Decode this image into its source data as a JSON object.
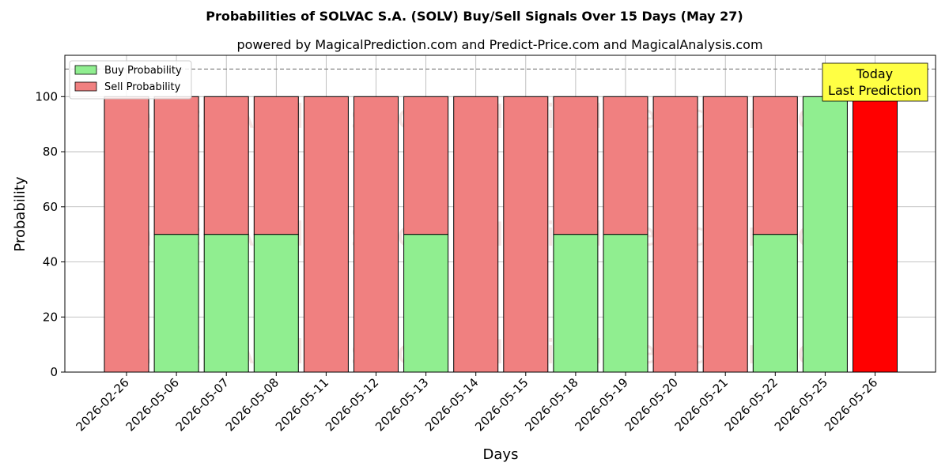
{
  "chart_data": {
    "type": "bar",
    "title": "Probabilities of SOLVAC S.A. (SOLV) Buy/Sell Signals Over 15 Days (May 27)",
    "subtitle": "powered by MagicalPrediction.com and Predict-Price.com and MagicalAnalysis.com",
    "xlabel": "Days",
    "ylabel": "Probability",
    "ylim": [
      0,
      115
    ],
    "yticks": [
      0,
      20,
      40,
      60,
      80,
      100
    ],
    "reference_line": 110,
    "grid": true,
    "legend_placement": "top-left",
    "stacked": true,
    "categories": [
      "2026-02-26",
      "2026-05-06",
      "2026-05-07",
      "2026-05-08",
      "2026-05-11",
      "2026-05-12",
      "2026-05-13",
      "2026-05-14",
      "2026-05-15",
      "2026-05-18",
      "2026-05-19",
      "2026-05-20",
      "2026-05-21",
      "2026-05-22",
      "2026-05-25",
      "2026-05-26"
    ],
    "series": [
      {
        "name": "Buy Probability",
        "color": "#90ee90",
        "values": [
          0,
          50,
          50,
          50,
          0,
          0,
          50,
          0,
          0,
          50,
          50,
          0,
          0,
          50,
          100,
          0
        ]
      },
      {
        "name": "Sell Probability",
        "color": "#f08080",
        "values": [
          100,
          50,
          50,
          50,
          100,
          100,
          50,
          100,
          100,
          50,
          50,
          100,
          100,
          50,
          0,
          100
        ]
      }
    ],
    "highlight": {
      "index": 15,
      "color": "#ff0000"
    },
    "annotation": {
      "line1": "Today",
      "line2": "Last Prediction",
      "color": "#ffff44"
    },
    "watermarks": [
      "MagicalAnalysis.com",
      "MagicalPrediction.com"
    ]
  }
}
